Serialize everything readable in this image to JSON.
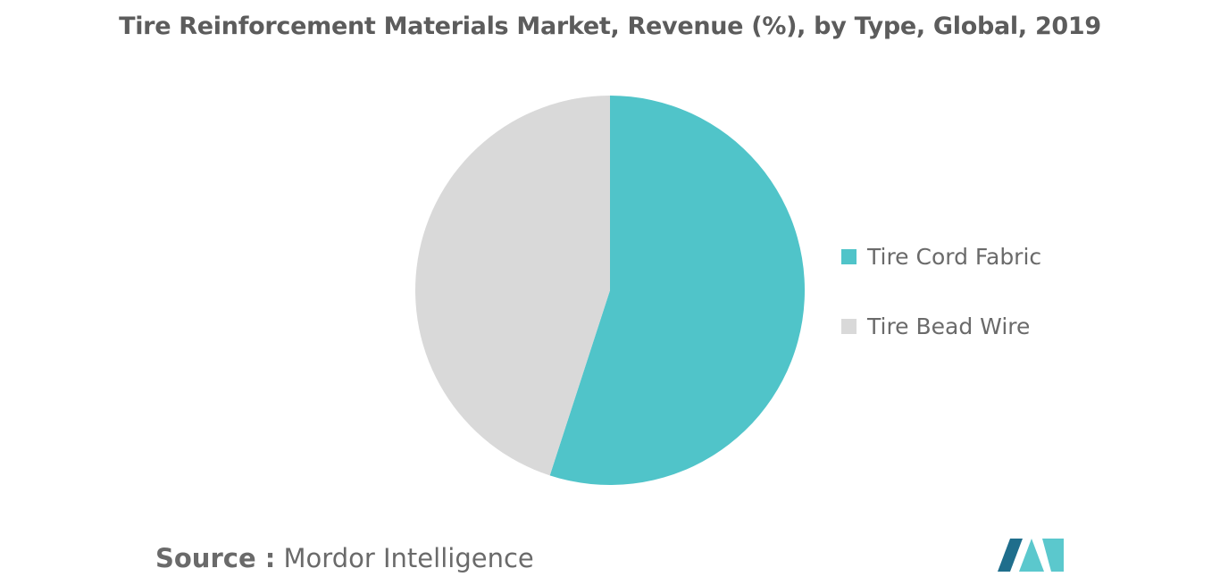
{
  "chart_data": {
    "type": "pie",
    "title": "Tire Reinforcement Materials Market, Revenue (%), by Type, Global, 2019",
    "slices": [
      {
        "label": "Tire Cord Fabric",
        "value": 55.0,
        "color": "#50c4c9"
      },
      {
        "label": "Tire Bead Wire",
        "value": 45.0,
        "color": "#d9d9d9"
      }
    ],
    "legend_position": "right"
  },
  "source": {
    "label": "Source :",
    "text": "Mordor Intelligence"
  },
  "colors": {
    "logo_dark": "#1f6e8c",
    "logo_light": "#5bc8cd"
  }
}
